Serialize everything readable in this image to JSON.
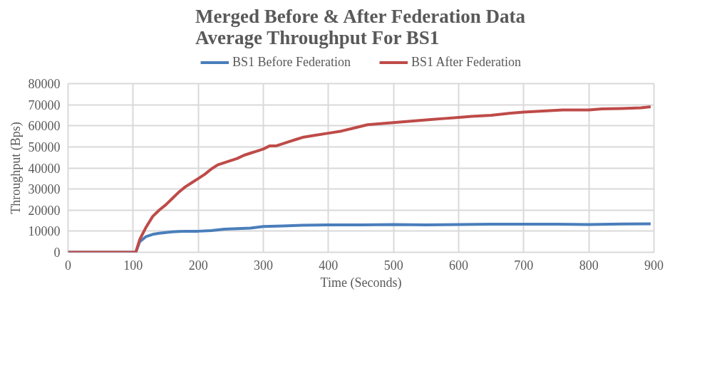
{
  "chart_data": {
    "type": "line",
    "title": "Merged Before & After Federation Data\nAverage Throughput For BS1",
    "xlabel": "Time (Seconds)",
    "ylabel": "Throughput (Bps)",
    "xlim": [
      0,
      900
    ],
    "xticks": [
      0,
      100,
      200,
      300,
      400,
      500,
      600,
      700,
      800,
      900
    ],
    "ylim": [
      0,
      80000
    ],
    "yticks": [
      0,
      10000,
      20000,
      30000,
      40000,
      50000,
      60000,
      70000,
      80000
    ],
    "grid": true,
    "legend": "top",
    "marker": "none",
    "line_style": "solid",
    "series": [
      {
        "name": "BS1 Before Federation",
        "color": "#4a7ebb",
        "x": [
          0,
          50,
          104,
          110,
          120,
          130,
          140,
          160,
          180,
          200,
          220,
          240,
          260,
          280,
          300,
          330,
          360,
          400,
          450,
          500,
          550,
          600,
          650,
          700,
          750,
          800,
          850,
          895
        ],
        "values": [
          0,
          0,
          0,
          5000,
          7500,
          8500,
          9000,
          9700,
          10000,
          10000,
          10300,
          11000,
          11200,
          11500,
          12200,
          12500,
          12800,
          13000,
          13000,
          13200,
          13000,
          13200,
          13300,
          13300,
          13300,
          13200,
          13400,
          13500
        ]
      },
      {
        "name": "BS1 After Federation",
        "color": "#be4b48",
        "x": [
          0,
          50,
          104,
          110,
          120,
          130,
          140,
          150,
          160,
          170,
          180,
          190,
          200,
          210,
          220,
          230,
          240,
          250,
          260,
          270,
          280,
          290,
          300,
          310,
          320,
          330,
          340,
          350,
          360,
          380,
          400,
          420,
          440,
          460,
          480,
          500,
          520,
          540,
          560,
          580,
          600,
          620,
          650,
          680,
          700,
          730,
          760,
          790,
          800,
          820,
          850,
          880,
          895
        ],
        "values": [
          0,
          0,
          0,
          6000,
          12000,
          17000,
          20000,
          22500,
          25500,
          28500,
          31000,
          33000,
          35000,
          37000,
          39500,
          41500,
          42500,
          43500,
          44500,
          46000,
          47000,
          48000,
          49000,
          50500,
          50500,
          51500,
          52500,
          53500,
          54500,
          55500,
          56500,
          57500,
          59000,
          60500,
          61000,
          61500,
          62000,
          62500,
          63000,
          63500,
          64000,
          64500,
          65000,
          66000,
          66500,
          67000,
          67500,
          67500,
          67500,
          68000,
          68200,
          68500,
          69000
        ]
      }
    ]
  }
}
